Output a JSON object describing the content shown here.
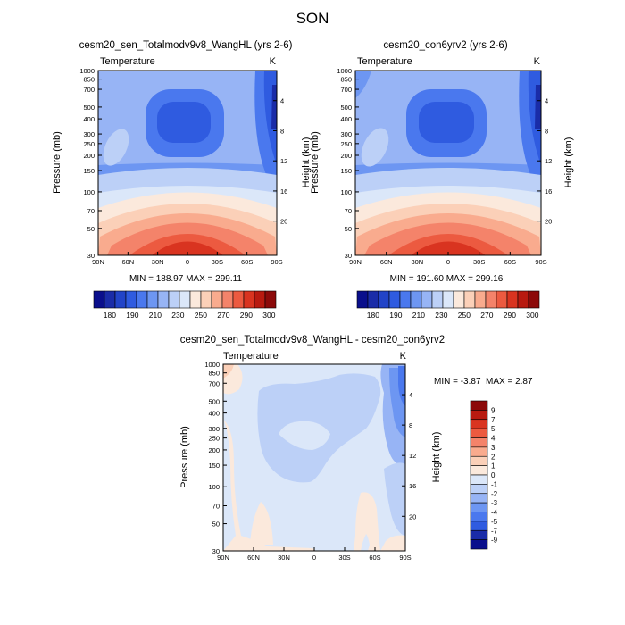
{
  "page": {
    "title": "SON"
  },
  "chart_data": [
    {
      "type": "heatmap",
      "title": "cesm20_sen_Totalmodv9v8_WangHL (yrs 2-6)",
      "left_string": "Temperature",
      "right_string": "K",
      "ylabel": "Pressure (mb)",
      "y2label": "Height (km)",
      "x_ticks": [
        "90N",
        "60N",
        "30N",
        "0",
        "30S",
        "60S",
        "90S"
      ],
      "y_ticks": [
        "30",
        "50",
        "70",
        "100",
        "150",
        "200",
        "250",
        "300",
        "400",
        "500",
        "700",
        "850",
        "1000"
      ],
      "y2_ticks": [
        "20",
        "16",
        "12",
        "8",
        "4"
      ],
      "ylim": [
        1000,
        30
      ],
      "stats": "MIN = 188.97  MAX = 299.11",
      "min": 188.97,
      "max": 299.11,
      "colorbar_labels": [
        "180",
        "190",
        "210",
        "230",
        "250",
        "270",
        "290",
        "300"
      ]
    },
    {
      "type": "heatmap",
      "title": "cesm20_con6yrv2 (yrs 2-6)",
      "left_string": "Temperature",
      "right_string": "K",
      "ylabel": "Pressure (mb)",
      "y2label": "Height (km)",
      "x_ticks": [
        "90N",
        "60N",
        "30N",
        "0",
        "30S",
        "60S",
        "90S"
      ],
      "y_ticks": [
        "30",
        "50",
        "70",
        "100",
        "150",
        "200",
        "250",
        "300",
        "400",
        "500",
        "700",
        "850",
        "1000"
      ],
      "y2_ticks": [
        "20",
        "16",
        "12",
        "8",
        "4"
      ],
      "ylim": [
        1000,
        30
      ],
      "stats": "MIN = 191.60  MAX = 299.16",
      "min": 191.6,
      "max": 299.16,
      "colorbar_labels": [
        "180",
        "190",
        "210",
        "230",
        "250",
        "270",
        "290",
        "300"
      ]
    },
    {
      "type": "heatmap",
      "title": "cesm20_sen_Totalmodv9v8_WangHL - cesm20_con6yrv2",
      "left_string": "Temperature",
      "right_string": "K",
      "ylabel": "Pressure (mb)",
      "y2label": "Height (km)",
      "x_ticks": [
        "90N",
        "60N",
        "30N",
        "0",
        "30S",
        "60S",
        "90S"
      ],
      "y_ticks": [
        "30",
        "50",
        "70",
        "100",
        "150",
        "200",
        "250",
        "300",
        "400",
        "500",
        "700",
        "850",
        "1000"
      ],
      "y2_ticks": [
        "20",
        "16",
        "12",
        "8",
        "4"
      ],
      "ylim": [
        1000,
        30
      ],
      "stats_min": "MIN =  -3.87",
      "stats_max": "MAX =   2.87",
      "min": -3.87,
      "max": 2.87,
      "colorbar_labels": [
        "9",
        "7",
        "5",
        "4",
        "3",
        "2",
        "1",
        "0",
        "-1",
        "-2",
        "-3",
        "-4",
        "-5",
        "-7",
        "-9"
      ]
    }
  ],
  "colors": {
    "abs_scale": [
      "#0a0f8c",
      "#1a2ca8",
      "#2244c8",
      "#2f5be0",
      "#4a78ee",
      "#6d96f2",
      "#97b4f5",
      "#bcd0f7",
      "#dbe7f9",
      "#fbe9dc",
      "#fbd0b8",
      "#f9ab8e",
      "#f4836a",
      "#ec5a40",
      "#d93420",
      "#b81a10",
      "#8c0a0a"
    ],
    "diff_scale": [
      "#8c0a0a",
      "#b81a10",
      "#d93420",
      "#ec5a40",
      "#f4836a",
      "#f9ab8e",
      "#fbd0b8",
      "#fbe9dc",
      "#dbe7f9",
      "#bcd0f7",
      "#97b4f5",
      "#6d96f2",
      "#4a78ee",
      "#2f5be0",
      "#1a2ca8",
      "#0a0f8c"
    ]
  }
}
